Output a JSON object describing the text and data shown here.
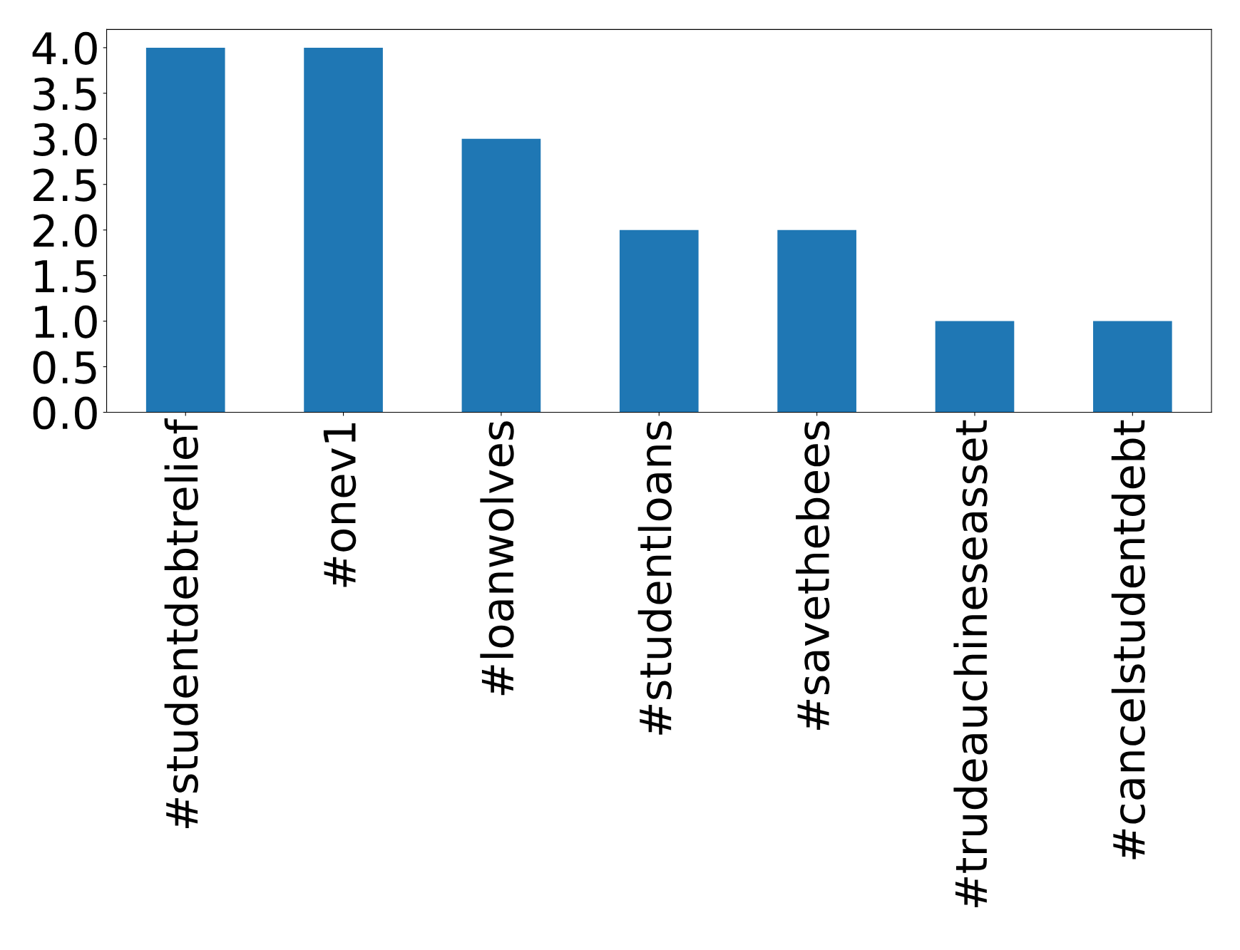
{
  "chart_data": {
    "type": "bar",
    "categories": [
      "#studentdebtrelief",
      "#onev1",
      "#loanwolves",
      "#studentloans",
      "#savethebees",
      "#trudeauchineseasset",
      "#cancelstudentdebt"
    ],
    "values": [
      4,
      4,
      3,
      2,
      2,
      1,
      1
    ],
    "color": "#1f77b4",
    "ylim": [
      0,
      4.2
    ],
    "yticks": [
      {
        "value": 0,
        "label": "0.0"
      },
      {
        "value": 0.5,
        "label": "0.5"
      },
      {
        "value": 1,
        "label": "1.0"
      },
      {
        "value": 1.5,
        "label": "1.5"
      },
      {
        "value": 2,
        "label": "2.0"
      },
      {
        "value": 2.5,
        "label": "2.5"
      },
      {
        "value": 3,
        "label": "3.0"
      },
      {
        "value": 3.5,
        "label": "3.5"
      },
      {
        "value": 4,
        "label": "4.0"
      }
    ],
    "grid": false,
    "legend": false
  }
}
